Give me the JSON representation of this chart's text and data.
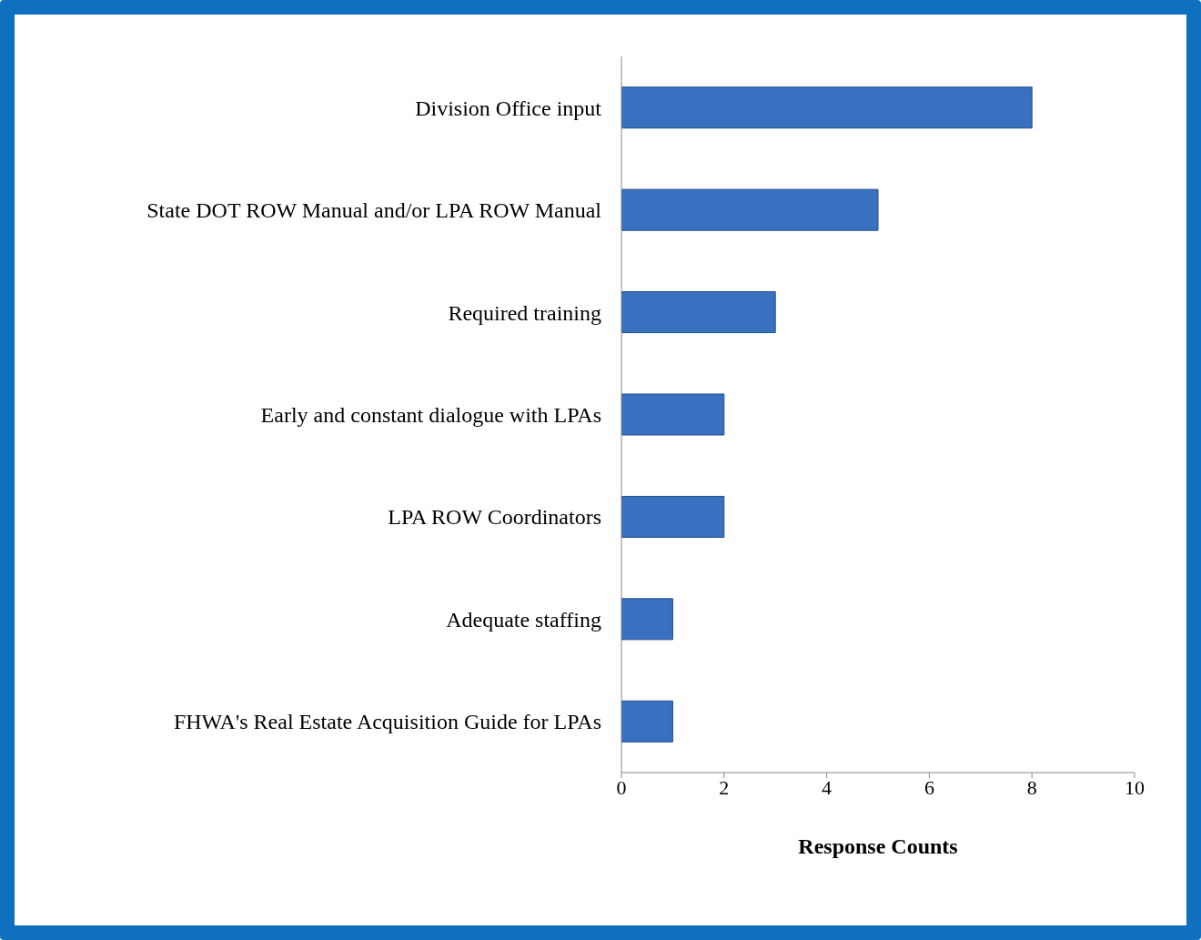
{
  "chart_data": {
    "type": "bar",
    "orientation": "horizontal",
    "xlabel": "Response Counts",
    "categories": [
      "Division Office input",
      "State DOT ROW Manual and/or LPA ROW Manual",
      "Required training",
      "Early and constant dialogue with LPAs",
      "LPA ROW Coordinators",
      "Adequate staffing",
      "FHWA's Real Estate Acquisition Guide for LPAs"
    ],
    "values": [
      8,
      5,
      3,
      2,
      2,
      1,
      1
    ],
    "color": "#3a70c0",
    "xlim": [
      0,
      10
    ],
    "xticks": [
      0,
      2,
      4,
      6,
      8,
      10
    ],
    "grid": false,
    "legend": false
  }
}
